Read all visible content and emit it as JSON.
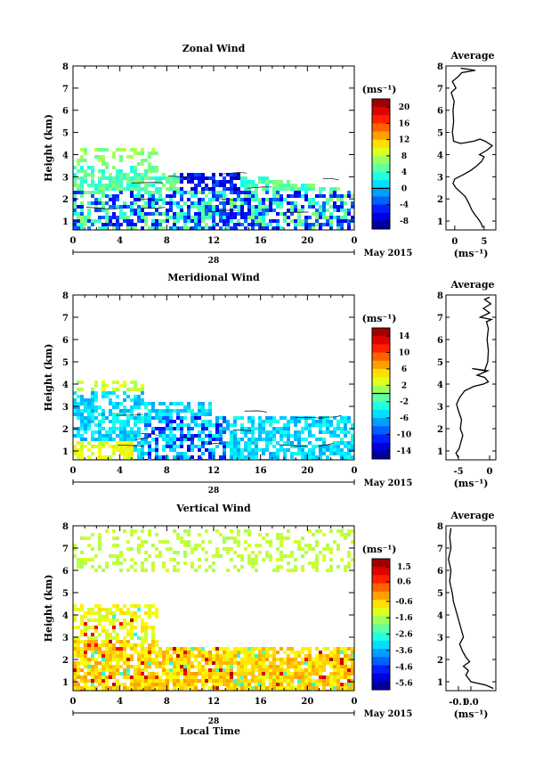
{
  "chart_data": [
    {
      "type": "heatmap",
      "title": "Zonal Wind",
      "ylabel": "Height (km)",
      "xlim": [
        0,
        24
      ],
      "ylim": [
        0.6,
        8
      ],
      "xticks": [
        "0",
        "4",
        "8",
        "12",
        "16",
        "20",
        "0"
      ],
      "yticks": [
        "1",
        "2",
        "3",
        "4",
        "5",
        "6",
        "7",
        "8"
      ],
      "date_axis": {
        "day": "28",
        "month_label": "May 2015"
      },
      "colorbar": {
        "unit": "(ms⁻¹)",
        "ticks": [
          "20",
          "16",
          "12",
          "8",
          "4",
          "0",
          "-4",
          "-8"
        ],
        "range": [
          -10,
          22
        ]
      },
      "average": {
        "title": "Average",
        "xlabel": "(ms⁻¹)",
        "xticks": [
          "0",
          "5"
        ],
        "xlim": [
          -1.5,
          7
        ],
        "profile": [
          [
            4.8,
            0.7
          ],
          [
            4.5,
            0.9
          ],
          [
            4.0,
            1.1
          ],
          [
            3.4,
            1.3
          ],
          [
            2.9,
            1.5
          ],
          [
            2.4,
            1.8
          ],
          [
            1.8,
            2.1
          ],
          [
            1.0,
            2.3
          ],
          [
            0.2,
            2.5
          ],
          [
            -0.3,
            2.7
          ],
          [
            0.0,
            2.9
          ],
          [
            1.5,
            3.1
          ],
          [
            2.8,
            3.3
          ],
          [
            3.8,
            3.5
          ],
          [
            4.6,
            3.7
          ],
          [
            5.0,
            3.9
          ],
          [
            4.2,
            4.0
          ],
          [
            5.5,
            4.2
          ],
          [
            6.4,
            4.4
          ],
          [
            5.2,
            4.6
          ],
          [
            4.3,
            4.7
          ],
          [
            3.2,
            4.6
          ],
          [
            1.0,
            4.5
          ],
          [
            -0.2,
            4.6
          ],
          [
            -0.4,
            5.0
          ],
          [
            -0.2,
            5.5
          ],
          [
            -0.3,
            6.0
          ],
          [
            -0.1,
            6.4
          ],
          [
            -0.6,
            6.8
          ],
          [
            0.2,
            7.0
          ],
          [
            -0.4,
            7.3
          ],
          [
            0.5,
            7.5
          ],
          [
            1.2,
            7.7
          ],
          [
            3.5,
            7.8
          ],
          [
            1.0,
            7.9
          ]
        ]
      }
    },
    {
      "type": "heatmap",
      "title": "Meridional Wind",
      "ylabel": "Height (km)",
      "xlim": [
        0,
        24
      ],
      "ylim": [
        0.6,
        8
      ],
      "xticks": [
        "0",
        "4",
        "8",
        "12",
        "16",
        "20",
        "0"
      ],
      "yticks": [
        "1",
        "2",
        "3",
        "4",
        "5",
        "6",
        "7",
        "8"
      ],
      "date_axis": {
        "day": "28",
        "month_label": "May 2015"
      },
      "colorbar": {
        "unit": "(ms⁻¹)",
        "ticks": [
          "14",
          "10",
          "6",
          "2",
          "-2",
          "-6",
          "-10",
          "-14"
        ],
        "range": [
          -16,
          16
        ]
      },
      "average": {
        "title": "Average",
        "xlabel": "(ms⁻¹)",
        "xticks": [
          "-5",
          "0"
        ],
        "xlim": [
          -7,
          1
        ],
        "profile": [
          [
            -5.0,
            0.7
          ],
          [
            -5.4,
            0.9
          ],
          [
            -4.9,
            1.1
          ],
          [
            -4.6,
            1.4
          ],
          [
            -4.3,
            1.7
          ],
          [
            -4.7,
            2.0
          ],
          [
            -4.5,
            2.4
          ],
          [
            -5.0,
            2.8
          ],
          [
            -5.3,
            3.1
          ],
          [
            -4.8,
            3.4
          ],
          [
            -4.0,
            3.7
          ],
          [
            -2.5,
            3.9
          ],
          [
            -1.0,
            4.0
          ],
          [
            -0.2,
            4.1
          ],
          [
            -0.8,
            4.3
          ],
          [
            -2.0,
            4.4
          ],
          [
            -0.3,
            4.6
          ],
          [
            -2.8,
            4.7
          ],
          [
            -0.8,
            4.6
          ],
          [
            -0.3,
            5.0
          ],
          [
            -0.2,
            5.5
          ],
          [
            -0.4,
            6.0
          ],
          [
            -0.2,
            6.5
          ],
          [
            -0.5,
            6.8
          ],
          [
            0.3,
            6.9
          ],
          [
            -1.5,
            7.0
          ],
          [
            0.0,
            7.2
          ],
          [
            -1.0,
            7.4
          ],
          [
            0.2,
            7.6
          ],
          [
            -0.8,
            7.8
          ],
          [
            0.0,
            7.9
          ]
        ]
      }
    },
    {
      "type": "heatmap",
      "title": "Vertical Wind",
      "ylabel": "Height (km)",
      "xlabel": "Local Time",
      "xlim": [
        0,
        24
      ],
      "ylim": [
        0.6,
        8
      ],
      "xticks": [
        "0",
        "4",
        "8",
        "12",
        "16",
        "20",
        "0"
      ],
      "yticks": [
        "1",
        "2",
        "3",
        "4",
        "5",
        "6",
        "7",
        "8"
      ],
      "date_axis": {
        "day": "28",
        "month_label": "May 2015"
      },
      "colorbar": {
        "unit": "(ms⁻¹)",
        "ticks": [
          "1.5",
          "0.6",
          "-0.6",
          "-1.6",
          "-2.6",
          "-3.6",
          "-4.6",
          "-5.6"
        ],
        "range": [
          -6,
          2
        ]
      },
      "average": {
        "title": "Average",
        "xlabel": "(ms⁻¹)",
        "xticks": [
          "-0.1",
          "0.0"
        ],
        "xlim": [
          -0.2,
          0.2
        ],
        "profile": [
          [
            0.18,
            0.7
          ],
          [
            0.12,
            0.85
          ],
          [
            0.0,
            1.0
          ],
          [
            -0.04,
            1.3
          ],
          [
            -0.02,
            1.5
          ],
          [
            -0.06,
            1.7
          ],
          [
            -0.01,
            1.9
          ],
          [
            -0.04,
            2.1
          ],
          [
            -0.07,
            2.4
          ],
          [
            -0.09,
            2.7
          ],
          [
            -0.06,
            3.0
          ],
          [
            -0.08,
            3.4
          ],
          [
            -0.1,
            3.8
          ],
          [
            -0.12,
            4.2
          ],
          [
            -0.14,
            4.6
          ],
          [
            -0.15,
            5.0
          ],
          [
            -0.17,
            5.5
          ],
          [
            -0.16,
            6.0
          ],
          [
            -0.18,
            6.5
          ],
          [
            -0.16,
            7.0
          ],
          [
            -0.17,
            7.5
          ],
          [
            -0.16,
            7.9
          ]
        ]
      }
    }
  ]
}
